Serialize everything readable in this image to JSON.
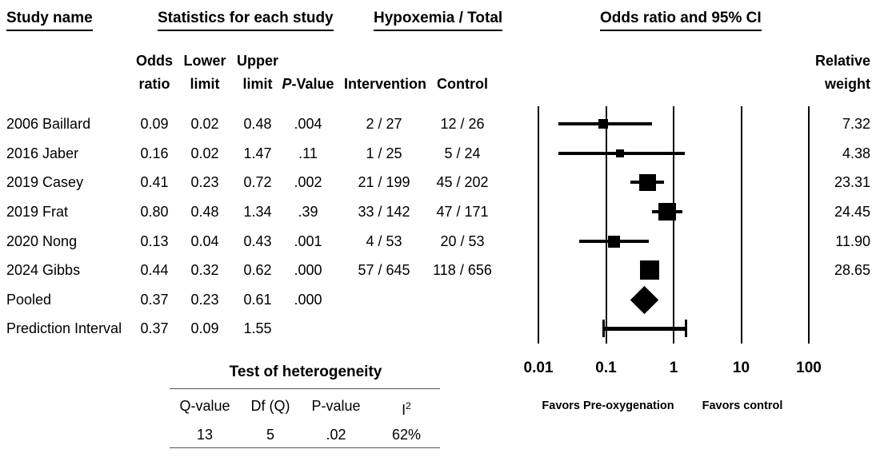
{
  "title_row": {
    "study_name": "Study name",
    "statistics": "Statistics for each study",
    "hypoxemia": "Hypoxemia / Total",
    "or_ci": "Odds ratio and 95% CI"
  },
  "column_headers": {
    "odds_line1": "Odds",
    "odds_line2": "ratio",
    "lower_line1": "Lower",
    "lower_line2": "limit",
    "upper_line1": "Upper",
    "upper_line2": "limit",
    "p_italic": "P",
    "p_rest": "-Value",
    "intervention": "Intervention",
    "control": "Control",
    "relative_line1": "Relative",
    "relative_line2": "weight"
  },
  "studies": [
    {
      "name": "2006 Baillard",
      "odds": "0.09",
      "lower": "0.02",
      "upper": "0.48",
      "p": ".004",
      "intervention": "2 / 27",
      "control": "12 / 26",
      "weight": "7.32"
    },
    {
      "name": "2016 Jaber",
      "odds": "0.16",
      "lower": "0.02",
      "upper": "1.47",
      "p": ".11",
      "intervention": "1 / 25",
      "control": "5 / 24",
      "weight": "4.38"
    },
    {
      "name": "2019 Casey",
      "odds": "0.41",
      "lower": "0.23",
      "upper": "0.72",
      "p": ".002",
      "intervention": "21 / 199",
      "control": "45 / 202",
      "weight": "23.31"
    },
    {
      "name": "2019 Frat",
      "odds": "0.80",
      "lower": "0.48",
      "upper": "1.34",
      "p": ".39",
      "intervention": "33 / 142",
      "control": "47 / 171",
      "weight": "24.45"
    },
    {
      "name": "2020 Nong",
      "odds": "0.13",
      "lower": "0.04",
      "upper": "0.43",
      "p": ".001",
      "intervention": "4 / 53",
      "control": "20 / 53",
      "weight": "11.90"
    },
    {
      "name": "2024 Gibbs",
      "odds": "0.44",
      "lower": "0.32",
      "upper": "0.62",
      "p": ".000",
      "intervention": "57 / 645",
      "control": "118 / 656",
      "weight": "28.65"
    },
    {
      "name": "Pooled",
      "odds": "0.37",
      "lower": "0.23",
      "upper": "0.61",
      "p": ".000",
      "intervention": "",
      "control": "",
      "weight": ""
    },
    {
      "name": "Prediction Interval",
      "odds": "0.37",
      "lower": "0.09",
      "upper": "1.55",
      "p": "",
      "intervention": "",
      "control": "",
      "weight": ""
    }
  ],
  "heterogeneity": {
    "title": "Test of heterogeneity",
    "headers": [
      {
        "text": "Q-value"
      },
      {
        "text": "Df (Q)"
      },
      {
        "text": "P-value"
      },
      {
        "text": "I",
        "sup": "2"
      }
    ],
    "values": [
      "13",
      "5",
      ".02",
      "62%"
    ]
  },
  "chart_data": {
    "type": "forest",
    "title": "Odds ratio and 95% CI",
    "x_axis": {
      "scale": "log10",
      "ticks": [
        0.01,
        0.1,
        1,
        10,
        100
      ],
      "tick_labels": [
        "0.01",
        "0.1",
        "1",
        "10",
        "100"
      ],
      "xlim": [
        0.01,
        100
      ]
    },
    "favors_left": "Favors Pre-oxygenation",
    "favors_right": "Favors control",
    "studies": [
      {
        "name": "2006 Baillard",
        "or": 0.09,
        "lower": 0.02,
        "upper": 0.48,
        "weight": 7.32
      },
      {
        "name": "2016 Jaber",
        "or": 0.16,
        "lower": 0.02,
        "upper": 1.47,
        "weight": 4.38
      },
      {
        "name": "2019 Casey",
        "or": 0.41,
        "lower": 0.23,
        "upper": 0.72,
        "weight": 23.31
      },
      {
        "name": "2019 Frat",
        "or": 0.8,
        "lower": 0.48,
        "upper": 1.34,
        "weight": 24.45
      },
      {
        "name": "2020 Nong",
        "or": 0.13,
        "lower": 0.04,
        "upper": 0.43,
        "weight": 11.9
      },
      {
        "name": "2024 Gibbs",
        "or": 0.44,
        "lower": 0.32,
        "upper": 0.62,
        "weight": 28.65
      }
    ],
    "pooled": {
      "or": 0.37,
      "lower": 0.23,
      "upper": 0.61
    },
    "prediction_interval": {
      "center": 0.37,
      "lower": 0.09,
      "upper": 1.55
    },
    "marker_color": "#000000"
  }
}
